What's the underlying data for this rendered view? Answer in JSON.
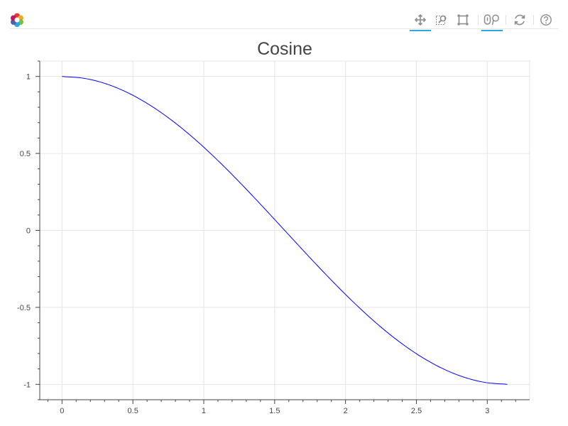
{
  "toolbar": {
    "tools": [
      {
        "name": "pan-tool",
        "icon": "pan-icon",
        "active": true
      },
      {
        "name": "box-zoom-tool",
        "icon": "box-zoom-icon",
        "active": false
      },
      {
        "name": "box-select-tool",
        "icon": "box-select-icon",
        "active": false
      },
      {
        "name": "hover-tool",
        "icon": "hover-icon",
        "active": true
      },
      {
        "name": "reset-tool",
        "icon": "reset-icon",
        "active": false
      },
      {
        "name": "help-tool",
        "icon": "help-icon",
        "active": false
      }
    ],
    "accent_color": "#26aae1"
  },
  "chart_data": {
    "type": "line",
    "title": "Cosine",
    "xlabel": "",
    "ylabel": "",
    "xlim": [
      -0.157,
      3.299
    ],
    "ylim": [
      -1.1,
      1.1
    ],
    "grid": true,
    "x_ticks": [
      0,
      0.5,
      1,
      1.5,
      2,
      2.5,
      3
    ],
    "x_tick_labels": [
      "0",
      "0.5",
      "1",
      "1.5",
      "2",
      "2.5",
      "3"
    ],
    "y_ticks": [
      -1,
      -0.5,
      0,
      0.5,
      1
    ],
    "y_tick_labels": [
      "-1",
      "-0.5",
      "0",
      "0.5",
      "1"
    ],
    "series": [
      {
        "color": "#0000ff",
        "x": [
          0,
          0.1571,
          0.3142,
          0.4712,
          0.6283,
          0.7854,
          0.9425,
          1.0996,
          1.2566,
          1.4137,
          1.5708,
          1.7279,
          1.885,
          2.042,
          2.1991,
          2.3562,
          2.5133,
          2.6704,
          2.8274,
          2.9845,
          3.1416
        ],
        "y": [
          1,
          0.9877,
          0.9511,
          0.891,
          0.809,
          0.7071,
          0.5878,
          0.454,
          0.309,
          0.1564,
          0,
          -0.1564,
          -0.309,
          -0.454,
          -0.5878,
          -0.7071,
          -0.809,
          -0.891,
          -0.9511,
          -0.9877,
          -1
        ]
      }
    ]
  }
}
